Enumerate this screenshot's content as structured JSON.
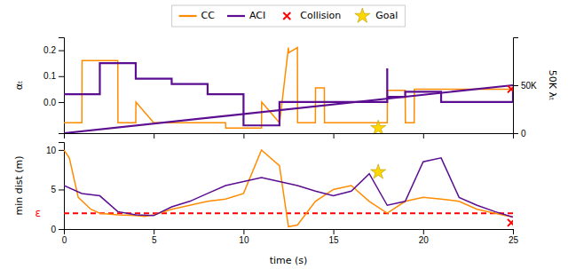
{
  "chart_data": [
    {
      "type": "line",
      "ylabel": "αₜ",
      "y2label": "50K λₜ",
      "xlim": [
        0,
        25
      ],
      "xticks": [
        0,
        5,
        10,
        15,
        20,
        25
      ],
      "ylim": [
        -0.12,
        0.25
      ],
      "yticks": [
        {
          "value": 0.0,
          "label": "0.0"
        },
        0.1,
        0.2
      ],
      "y2lim": [
        0,
        100000
      ],
      "y2ticks": [
        0,
        {
          "value": 50000,
          "label": "50K"
        }
      ],
      "tick_labels": "y",
      "legend": "top",
      "series": [
        {
          "name": "CC",
          "type": "line",
          "color": "#FF8C00",
          "x": [
            0,
            0.01,
            1,
            1.01,
            3,
            3.01,
            4,
            4.01,
            5,
            9,
            9.01,
            11,
            11.01,
            12,
            12.01,
            12.5,
            12.51,
            13,
            13.01,
            14,
            14.01,
            14.5,
            14.51,
            18,
            18.01,
            19,
            19.01,
            19.5,
            19.51,
            25
          ],
          "values": [
            -0.08,
            -0.08,
            -0.08,
            0.16,
            0.16,
            -0.08,
            -0.08,
            0.0,
            -0.08,
            -0.08,
            -0.1,
            -0.1,
            0.0,
            -0.08,
            -0.08,
            0.21,
            0.19,
            0.21,
            -0.08,
            -0.08,
            0.055,
            0.055,
            -0.08,
            -0.08,
            0.045,
            0.045,
            -0.08,
            -0.08,
            0.05,
            0.05
          ]
        },
        {
          "name": "ACI",
          "type": "step",
          "color": "#5B0E91",
          "x": [
            0,
            2,
            2,
            4,
            4,
            6,
            6,
            8,
            8,
            10,
            10,
            12,
            12,
            18,
            18,
            19,
            19,
            21,
            21,
            25
          ],
          "values": [
            0.03,
            0.15,
            0.15,
            0.09,
            0.09,
            0.07,
            0.07,
            0.03,
            0.03,
            0.02,
            -0.09,
            -0.09,
            0.0,
            0.13,
            0.02,
            0.02,
            0.04,
            0.04,
            0.0,
            0.05
          ]
        },
        {
          "type": "line",
          "axis": "y2",
          "color": "#5B0E91",
          "x": [
            0,
            25
          ],
          "values": [
            0,
            50000
          ]
        },
        {
          "name": "Collision",
          "type": "scatter",
          "marker": "x",
          "color": "#FF0000",
          "x": [
            24.9
          ],
          "values": [
            0.05
          ]
        },
        {
          "name": "Goal",
          "type": "scatter",
          "marker": "star",
          "color": "#FFD700",
          "x": [
            17.5
          ],
          "values": [
            -0.1
          ]
        }
      ]
    },
    {
      "type": "line",
      "xlabel": "time (s)",
      "ylabel": "min dist (m)",
      "xlim": [
        0,
        25
      ],
      "xticks": [
        0,
        5,
        10,
        15,
        20,
        25
      ],
      "ylim": [
        0,
        11
      ],
      "yticks": [
        0,
        5,
        10
      ],
      "hline": {
        "y": 2.0,
        "label": "ε",
        "color": "#FF0000",
        "line_style": "dashed"
      },
      "series": [
        {
          "name": "CC",
          "type": "line",
          "color": "#FF8C00",
          "x": [
            0,
            0.3,
            0.8,
            1.5,
            2,
            3,
            4,
            4.5,
            5,
            6,
            7,
            8,
            9,
            10,
            11,
            12,
            12.5,
            13,
            14,
            15,
            16,
            17,
            18,
            19,
            20,
            21,
            22,
            23,
            24,
            25
          ],
          "values": [
            10,
            9,
            4,
            2.5,
            2.0,
            1.8,
            1.7,
            1.6,
            1.8,
            2.5,
            3.0,
            3.5,
            3.8,
            4.5,
            10,
            8,
            0.3,
            0.5,
            3.5,
            5.0,
            5.5,
            3.5,
            2.0,
            3.5,
            4.0,
            3.8,
            3.5,
            2.5,
            2.0,
            1.5
          ]
        },
        {
          "name": "ACI",
          "type": "line",
          "color": "#5B0E91",
          "x": [
            0,
            1,
            2,
            3,
            4,
            5,
            6,
            7,
            8,
            9,
            10,
            11,
            12,
            13,
            14,
            15,
            16,
            17,
            18,
            19,
            20,
            21,
            22,
            23,
            24,
            25
          ],
          "values": [
            5.5,
            4.5,
            4.2,
            2.2,
            1.8,
            1.7,
            2.8,
            3.5,
            4.5,
            5.5,
            6.0,
            6.5,
            6.0,
            5.5,
            4.8,
            4.2,
            4.8,
            7.0,
            3.0,
            3.5,
            8.5,
            9.0,
            4.0,
            3.0,
            2.2,
            1.5
          ]
        },
        {
          "name": "Collision",
          "type": "scatter",
          "marker": "x",
          "color": "#FF0000",
          "x": [
            24.9
          ],
          "values": [
            0.8
          ]
        },
        {
          "name": "Goal",
          "type": "scatter",
          "marker": "star",
          "color": "#FFD700",
          "x": [
            17.5
          ],
          "values": [
            7.2
          ]
        }
      ]
    }
  ]
}
